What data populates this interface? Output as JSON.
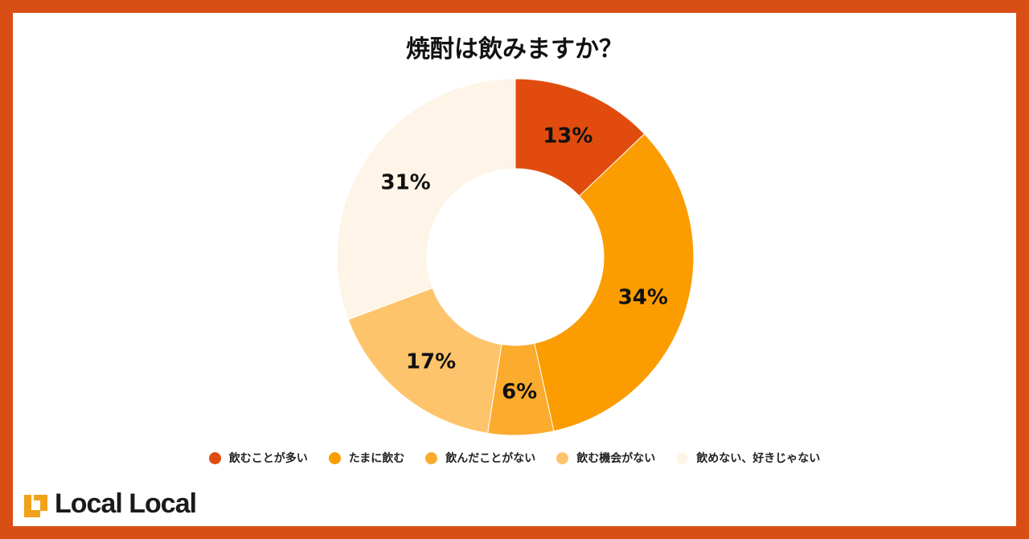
{
  "chart_data": {
    "type": "pie",
    "title": "焼酎は飲みますか？",
    "categories": [
      "飲むことが多い",
      "たまに飲む",
      "飲んだことがない",
      "飲む機会がない",
      "飲めない、好きじゃない"
    ],
    "values": [
      13,
      34,
      6,
      17,
      31
    ],
    "labels": [
      "13%",
      "34%",
      "6%",
      "17%",
      "31%"
    ],
    "colors": [
      "#e14c0e",
      "#fb9d00",
      "#fbab2e",
      "#fec46b",
      "#fef4e7"
    ],
    "donut": true,
    "legend_position": "bottom"
  },
  "brand": {
    "name": "Local Local"
  }
}
